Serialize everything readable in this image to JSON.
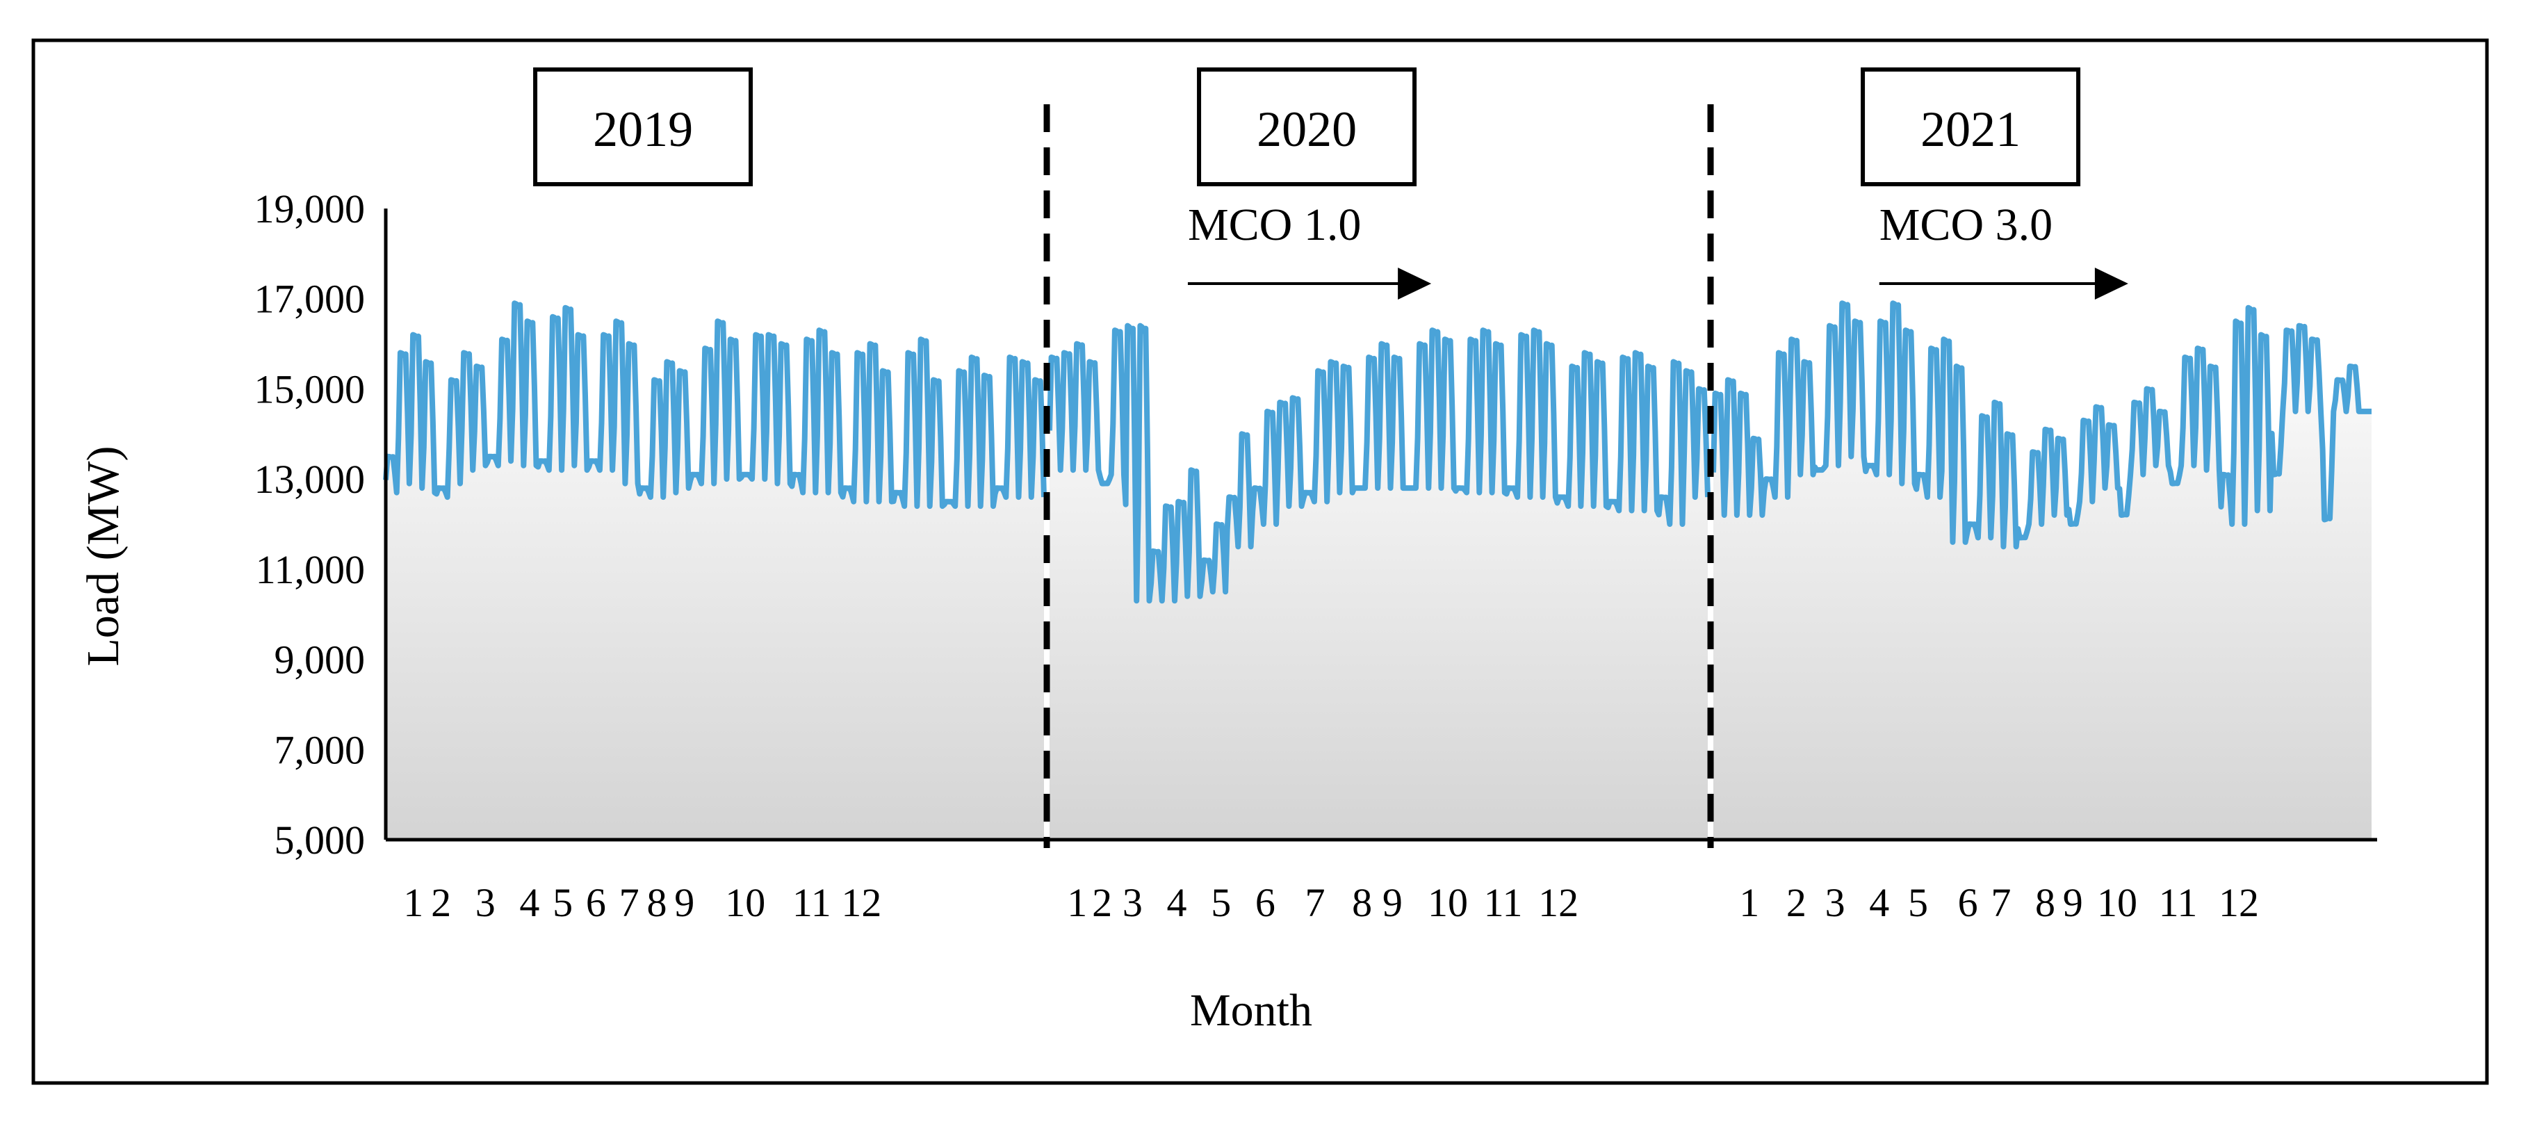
{
  "chart_data": {
    "type": "area",
    "title": "",
    "xlabel": "Month",
    "ylabel": "Load (MW)",
    "ylim": [
      5000,
      19000
    ],
    "yticks": [
      "5,000",
      "7,000",
      "9,000",
      "11,000",
      "13,000",
      "15,000",
      "17,000",
      "19,000"
    ],
    "grid": false,
    "legend": "none",
    "colors": {
      "line": "#4aa3d8",
      "fill_top": "#ffffff",
      "fill_bottom": "#d4d4d4"
    },
    "years": [
      {
        "label": "2019",
        "x_range": [
          1,
          12.9
        ],
        "month_ticks": [
          {
            "label": "1",
            "x": 1.5
          },
          {
            "label": "2",
            "x": 2.0
          },
          {
            "label": "3",
            "x": 2.8
          },
          {
            "label": "4",
            "x": 3.6
          },
          {
            "label": "5",
            "x": 4.2
          },
          {
            "label": "6",
            "x": 4.8
          },
          {
            "label": "7",
            "x": 5.4
          },
          {
            "label": "8",
            "x": 5.9
          },
          {
            "label": "9",
            "x": 6.4
          },
          {
            "label": "10",
            "x": 7.5
          },
          {
            "label": "11",
            "x": 8.7
          },
          {
            "label": "12",
            "x": 9.6
          }
        ],
        "weekly_peaks": [
          13500,
          15800,
          16200,
          15600,
          12800,
          15200,
          15800,
          15500,
          13500,
          16100,
          16900,
          16500,
          13400,
          16600,
          16800,
          16200,
          13400,
          16200,
          16500,
          16000,
          12800,
          15200,
          15600,
          15400,
          13100,
          15900,
          16500,
          16100,
          13100,
          16200,
          16200,
          16000,
          13100,
          16100,
          16300,
          15800,
          12800,
          15800,
          16000,
          15400,
          12700,
          15800,
          16100,
          15200,
          12500,
          15400,
          15700,
          15300,
          12800,
          15700,
          15600,
          15200
        ],
        "weekly_troughs": [
          12700,
          12900,
          12800,
          12700,
          12600,
          12900,
          13200,
          13300,
          13300,
          13400,
          13300,
          13300,
          13200,
          13200,
          13300,
          13200,
          13200,
          13200,
          12900,
          12900,
          12600,
          12600,
          12700,
          12800,
          12900,
          12900,
          13000,
          13000,
          13000,
          13000,
          12900,
          12900,
          12700,
          12700,
          12700,
          12700,
          12500,
          12500,
          12500,
          12500,
          12400,
          12400,
          12400,
          12400,
          12400,
          12400,
          12400,
          12400,
          12600,
          12600,
          12600,
          12600
        ]
      },
      {
        "label": "2020",
        "x_range": [
          13,
          24.9
        ],
        "month_ticks": [
          {
            "label": "1",
            "x": 13.5
          },
          {
            "label": "2",
            "x": 13.95
          },
          {
            "label": "3",
            "x": 14.5
          },
          {
            "label": "4",
            "x": 15.3
          },
          {
            "label": "5",
            "x": 16.1
          },
          {
            "label": "6",
            "x": 16.9
          },
          {
            "label": "7",
            "x": 17.8
          },
          {
            "label": "8",
            "x": 18.65
          },
          {
            "label": "9",
            "x": 19.2
          },
          {
            "label": "10",
            "x": 20.2
          },
          {
            "label": "11",
            "x": 21.2
          },
          {
            "label": "12",
            "x": 22.2
          }
        ],
        "weekly_peaks": [
          15700,
          15800,
          16000,
          15600,
          12900,
          16300,
          16400,
          16400,
          11400,
          12400,
          12500,
          13200,
          11200,
          12000,
          12600,
          14000,
          12800,
          14500,
          14700,
          14800,
          12700,
          15400,
          15600,
          15500,
          12800,
          15700,
          16000,
          15700,
          12800,
          16000,
          16300,
          16100,
          12800,
          16100,
          16300,
          16000,
          12800,
          16200,
          16300,
          16000,
          12600,
          15500,
          15800,
          15600,
          12500,
          15700,
          15800,
          15500,
          12600,
          15600,
          15400,
          15000
        ],
        "weekly_troughs": [
          13200,
          13200,
          13200,
          13200,
          13100,
          13100,
          10300,
          10300,
          10300,
          10300,
          10400,
          10400,
          10500,
          10500,
          11500,
          11500,
          12000,
          12000,
          12400,
          12400,
          12500,
          12500,
          12700,
          12700,
          12800,
          12800,
          12800,
          12800,
          12800,
          12800,
          12800,
          12800,
          12700,
          12700,
          12700,
          12700,
          12600,
          12600,
          12600,
          12600,
          12400,
          12400,
          12400,
          12400,
          12300,
          12300,
          12300,
          12300,
          12000,
          12000,
          12600,
          12600
        ]
      },
      {
        "label": "2021",
        "x_range": [
          25,
          36.9
        ],
        "month_ticks": [
          {
            "label": "1",
            "x": 25.65
          },
          {
            "label": "2",
            "x": 26.5
          },
          {
            "label": "3",
            "x": 27.2
          },
          {
            "label": "4",
            "x": 28.0
          },
          {
            "label": "5",
            "x": 28.7
          },
          {
            "label": "6",
            "x": 29.6
          },
          {
            "label": "7",
            "x": 30.2
          },
          {
            "label": "8",
            "x": 31.0
          },
          {
            "label": "9",
            "x": 31.5
          },
          {
            "label": "10",
            "x": 32.3
          },
          {
            "label": "11",
            "x": 33.4
          },
          {
            "label": "12",
            "x": 34.5
          }
        ],
        "weekly_peaks": [
          14900,
          15200,
          14900,
          13900,
          13000,
          15800,
          16100,
          15600,
          13200,
          16400,
          16900,
          16500,
          13300,
          16500,
          16900,
          16300,
          13100,
          15900,
          16100,
          15500,
          12000,
          14400,
          14700,
          14000,
          11700,
          13600,
          14100,
          13900,
          12000,
          14300,
          14600,
          14200,
          12200,
          14700,
          15000,
          14500,
          12900,
          15700,
          15900,
          15500,
          13100,
          16500,
          16800,
          16200,
          13100,
          16300,
          16400,
          16100,
          12100,
          15200,
          15500,
          14500
        ],
        "weekly_troughs": [
          12200,
          12200,
          12200,
          12200,
          12600,
          12600,
          13100,
          13100,
          13300,
          13300,
          13500,
          13500,
          13100,
          13100,
          12900,
          12900,
          12600,
          12600,
          11600,
          11600,
          11700,
          11700,
          11500,
          11500,
          12000,
          12000,
          12200,
          12200,
          12500,
          12500,
          12800,
          12800,
          13100,
          13100,
          13300,
          13300,
          13300,
          13300,
          13200,
          13200,
          12000,
          12000,
          12300,
          12300,
          14500,
          14500,
          14500,
          14500,
          14500,
          14500,
          14500,
          14500
        ]
      }
    ],
    "annotations": [
      {
        "label": "MCO 1.0",
        "x_start": 15.5,
        "x_end": 19.9
      },
      {
        "label": "MCO 3.0",
        "x_start": 28.0,
        "x_end": 32.5
      }
    ]
  }
}
